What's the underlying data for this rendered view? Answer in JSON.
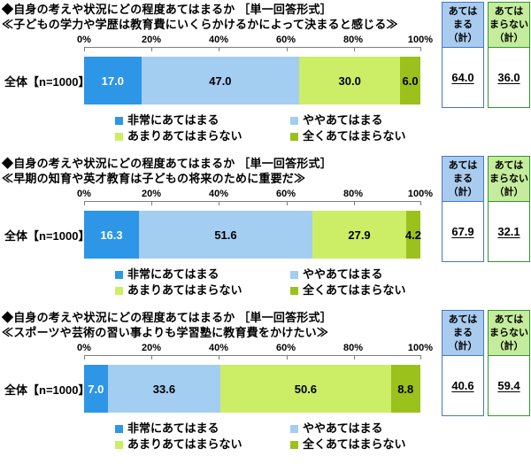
{
  "axis": {
    "ticks": [
      "0%",
      "20%",
      "40%",
      "60%",
      "80%",
      "100%"
    ]
  },
  "legend": {
    "items": [
      {
        "label": "非常にあてはまる",
        "color": "#2D96E6"
      },
      {
        "label": "ややあてはまる",
        "color": "#A4CDF2"
      },
      {
        "label": "あまりあてはまらない",
        "color": "#CBEE66"
      },
      {
        "label": "全くあてはまらない",
        "color": "#9BC11C"
      }
    ]
  },
  "colors": {
    "box_agree_border": "#4477CC",
    "box_agree_header_bg": "#A9CBEE",
    "box_disagree_border": "#2F9932",
    "box_disagree_header_bg": "#C5EC9C",
    "axis_line": "#7F7F7F"
  },
  "chart_data": [
    {
      "type": "bar",
      "variant": "horizontal-stacked-percent",
      "title": "◆自身の考えや状況にどの程度あてはまるか ［単一回答形式］",
      "subtitle": "≪子どもの学力や学歴は教育費にいくらかけるかによって決まると感じる≫",
      "categories": [
        "全体【n=1000】"
      ],
      "series": [
        {
          "name": "非常にあてはまる",
          "values": [
            17.0
          ],
          "color": "#2D96E6"
        },
        {
          "name": "ややあてはまる",
          "values": [
            47.0
          ],
          "color": "#A4CDF2"
        },
        {
          "name": "あまりあてはまらない",
          "values": [
            30.0
          ],
          "color": "#CBEE66"
        },
        {
          "name": "全くあてはまらない",
          "values": [
            6.0
          ],
          "color": "#9BC11C"
        }
      ],
      "value_labels": [
        "17.0",
        "47.0",
        "30.0",
        "6.0"
      ],
      "xlim": [
        0,
        100
      ],
      "x_ticks": [
        "0%",
        "20%",
        "40%",
        "60%",
        "80%",
        "100%"
      ],
      "legend_position": "bottom",
      "box_agree": {
        "header": "あては\nまる\n（計）",
        "value": "64.0"
      },
      "box_disagree": {
        "header": "あては\nまらない\n（計）",
        "value": "36.0"
      }
    },
    {
      "type": "bar",
      "variant": "horizontal-stacked-percent",
      "title": "◆自身の考えや状況にどの程度あてはまるか ［単一回答形式］",
      "subtitle": "≪早期の知育や英才教育は子どもの将来のために重要だ≫",
      "categories": [
        "全体【n=1000】"
      ],
      "series": [
        {
          "name": "非常にあてはまる",
          "values": [
            16.3
          ],
          "color": "#2D96E6"
        },
        {
          "name": "ややあてはまる",
          "values": [
            51.6
          ],
          "color": "#A4CDF2"
        },
        {
          "name": "あまりあてはまらない",
          "values": [
            27.9
          ],
          "color": "#CBEE66"
        },
        {
          "name": "全くあてはまらない",
          "values": [
            4.2
          ],
          "color": "#9BC11C"
        }
      ],
      "value_labels": [
        "16.3",
        "51.6",
        "27.9",
        "4.2"
      ],
      "xlim": [
        0,
        100
      ],
      "x_ticks": [
        "0%",
        "20%",
        "40%",
        "60%",
        "80%",
        "100%"
      ],
      "legend_position": "bottom",
      "box_agree": {
        "header": "あては\nまる\n（計）",
        "value": "67.9"
      },
      "box_disagree": {
        "header": "あては\nまらない\n（計）",
        "value": "32.1"
      }
    },
    {
      "type": "bar",
      "variant": "horizontal-stacked-percent",
      "title": "◆自身の考えや状況にどの程度あてはまるか ［単一回答形式］",
      "subtitle": "≪スポーツや芸術の習い事よりも学習塾に教育費をかけたい≫",
      "categories": [
        "全体【n=1000】"
      ],
      "series": [
        {
          "name": "非常にあてはまる",
          "values": [
            7.0
          ],
          "color": "#2D96E6"
        },
        {
          "name": "ややあてはまる",
          "values": [
            33.6
          ],
          "color": "#A4CDF2"
        },
        {
          "name": "あまりあてはまらない",
          "values": [
            50.6
          ],
          "color": "#CBEE66"
        },
        {
          "name": "全くあてはまらない",
          "values": [
            8.8
          ],
          "color": "#9BC11C"
        }
      ],
      "value_labels": [
        "7.0",
        "33.6",
        "50.6",
        "8.8"
      ],
      "xlim": [
        0,
        100
      ],
      "x_ticks": [
        "0%",
        "20%",
        "40%",
        "60%",
        "80%",
        "100%"
      ],
      "legend_position": "bottom",
      "box_agree": {
        "header": "あては\nまる\n（計）",
        "value": "40.6"
      },
      "box_disagree": {
        "header": "あては\nまらない\n（計）",
        "value": "59.4"
      }
    }
  ]
}
